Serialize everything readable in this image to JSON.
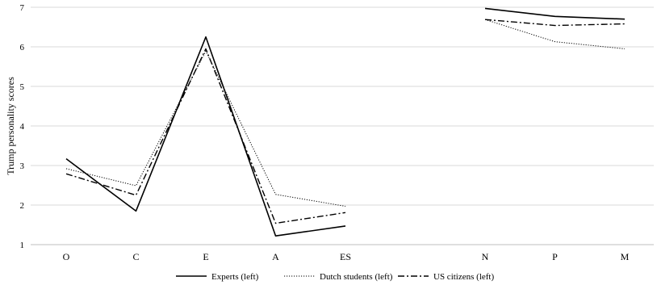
{
  "chart_data": {
    "type": "line",
    "ylabel": "Trump personality scores",
    "ylim": [
      1,
      7
    ],
    "y_ticks": [
      "1",
      "2",
      "3",
      "4",
      "5",
      "6",
      "7"
    ],
    "categories": [
      "O",
      "C",
      "E",
      "A",
      "ES",
      "",
      "N",
      "P",
      "M"
    ],
    "grid": true,
    "legend_position": "bottom",
    "series": [
      {
        "name": "Experts (left)",
        "line_style": "solid",
        "color": "#000000",
        "values": [
          3.17,
          1.85,
          6.25,
          1.22,
          1.47,
          null,
          6.97,
          6.77,
          6.7
        ]
      },
      {
        "name": "Dutch students (left)",
        "line_style": "dotted",
        "color": "#000000",
        "values": [
          2.92,
          2.49,
          5.89,
          2.27,
          1.97,
          null,
          6.69,
          6.13,
          5.95
        ]
      },
      {
        "name": "US citizens (left)",
        "line_style": "dash-dot",
        "color": "#000000",
        "values": [
          2.79,
          2.25,
          5.95,
          1.54,
          1.81,
          null,
          6.69,
          6.54,
          6.58
        ]
      }
    ]
  }
}
